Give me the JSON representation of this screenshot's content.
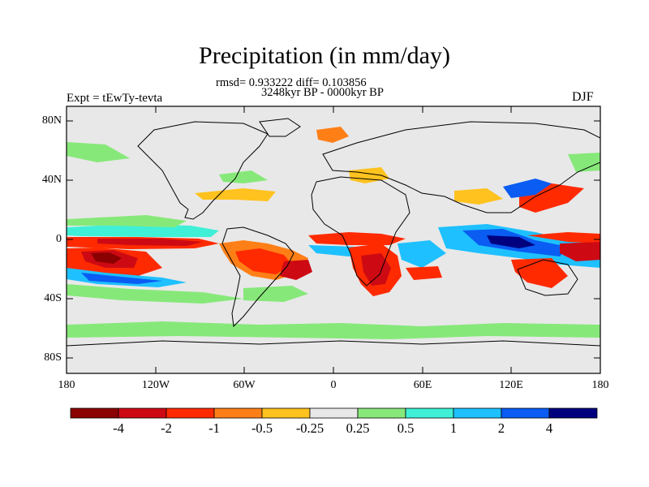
{
  "title": "Precipitation (in mm/day)",
  "subtitle_line1": "rmsd= 0.933222 diff= 0.103856",
  "subtitle_line2": "3248kyr BP - 0000kyr BP",
  "experiment_label": "Expt = tEwTy-tevta",
  "season": "DJF",
  "y_ticks": [
    "80N",
    "40N",
    "0",
    "40S",
    "80S"
  ],
  "x_ticks": [
    "180",
    "120W",
    "60W",
    "0",
    "60E",
    "120E",
    "180"
  ],
  "colorbar": {
    "labels": [
      "-4",
      "-2",
      "-1",
      "-0.5",
      "-0.25",
      "0.25",
      "0.5",
      "1",
      "2",
      "4"
    ],
    "colors": [
      "#8b0000",
      "#cd0a14",
      "#ff2a00",
      "#ff7f17",
      "#ffc21e",
      "#e8e8e8",
      "#87e87a",
      "#3ff0d6",
      "#1ec0ff",
      "#0a5cf2",
      "#00007f"
    ]
  }
}
